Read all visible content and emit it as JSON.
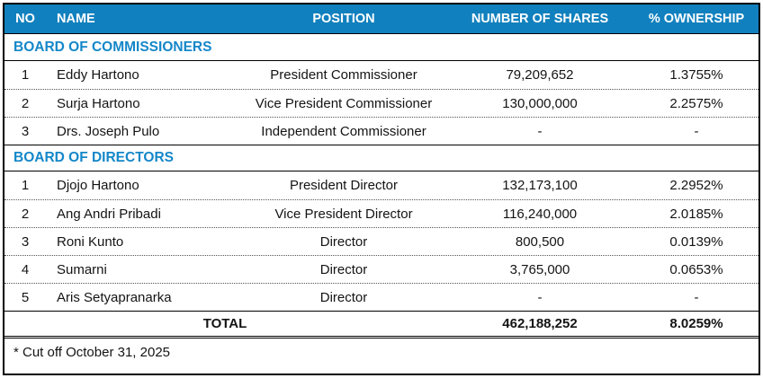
{
  "colors": {
    "header_bg": "#1180BE",
    "section_text": "#1487C9",
    "border": "#000000"
  },
  "table": {
    "columns": {
      "no": "NO",
      "name": "NAME",
      "position": "POSITION",
      "shares": "NUMBER OF SHARES",
      "ownership": "% OWNERSHIP"
    },
    "sections": [
      {
        "title": "BOARD OF COMMISSIONERS",
        "rows": [
          {
            "no": "1",
            "name": "Eddy Hartono",
            "position": "President Commissioner",
            "shares": "79,209,652",
            "ownership": "1.3755%"
          },
          {
            "no": "2",
            "name": "Surja Hartono",
            "position": "Vice President Commissioner",
            "shares": "130,000,000",
            "ownership": "2.2575%"
          },
          {
            "no": "3",
            "name": "Drs. Joseph Pulo",
            "position": "Independent Commissioner",
            "shares": "-",
            "ownership": "-"
          }
        ]
      },
      {
        "title": "BOARD OF DIRECTORS",
        "rows": [
          {
            "no": "1",
            "name": "Djojo Hartono",
            "position": "President Director",
            "shares": "132,173,100",
            "ownership": "2.2952%"
          },
          {
            "no": "2",
            "name": "Ang Andri Pribadi",
            "position": "Vice President Director",
            "shares": "116,240,000",
            "ownership": "2.0185%"
          },
          {
            "no": "3",
            "name": "Roni Kunto",
            "position": "Director",
            "shares": "800,500",
            "ownership": "0.0139%"
          },
          {
            "no": "4",
            "name": "Sumarni",
            "position": "Director",
            "shares": "3,765,000",
            "ownership": "0.0653%"
          },
          {
            "no": "5",
            "name": "Aris Setyapranarka",
            "position": "Director",
            "shares": "-",
            "ownership": "-"
          }
        ]
      }
    ],
    "total": {
      "label": "TOTAL",
      "shares": "462,188,252",
      "ownership": "8.0259%"
    },
    "footnote": "* Cut off October 31, 2025"
  }
}
